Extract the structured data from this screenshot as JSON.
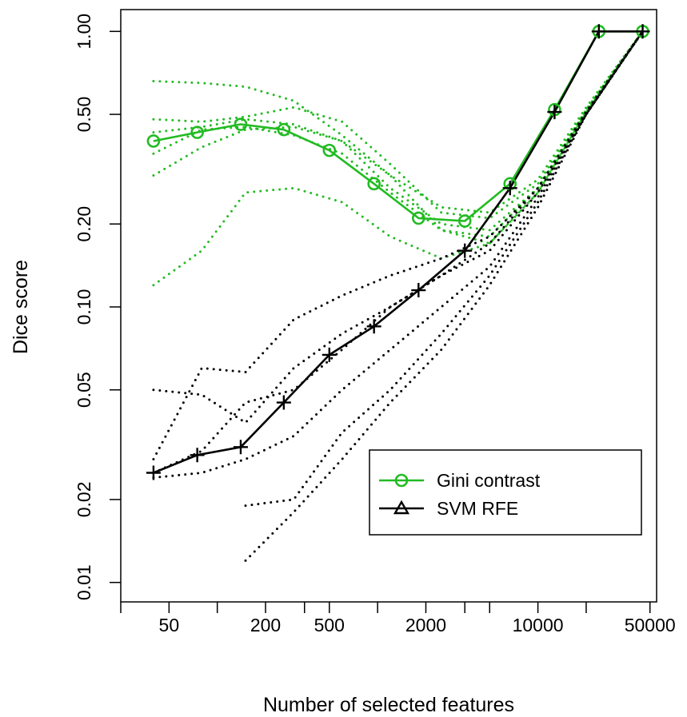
{
  "chart_data": {
    "type": "line",
    "title": "",
    "xlabel": "Number of selected features",
    "ylabel": "Dice score",
    "x_scale": "log",
    "y_scale": "log",
    "xlim": [
      25,
      55000
    ],
    "ylim": [
      0.0085,
      1.2
    ],
    "x_ticks": [
      25,
      50,
      100,
      200,
      350,
      500,
      1000,
      2000,
      3500,
      5000,
      10000,
      20000,
      50000
    ],
    "x_tick_labels": [
      {
        "value": 50,
        "label": "50"
      },
      {
        "value": 200,
        "label": "200"
      },
      {
        "value": 500,
        "label": "500"
      },
      {
        "value": 2000,
        "label": "2000"
      },
      {
        "value": 10000,
        "label": "10000"
      },
      {
        "value": 50000,
        "label": "50000"
      }
    ],
    "y_ticks": [
      {
        "value": 0.01,
        "label": "0.01"
      },
      {
        "value": 0.02,
        "label": "0.02"
      },
      {
        "value": 0.05,
        "label": "0.05"
      },
      {
        "value": 0.1,
        "label": "0.10"
      },
      {
        "value": 0.2,
        "label": "0.20"
      },
      {
        "value": 0.5,
        "label": "0.50"
      },
      {
        "value": 1.0,
        "label": "1.00"
      }
    ],
    "grid": false,
    "legend_position": "bottom-right",
    "series": [
      {
        "name": "Gini contrast",
        "color": "#22bb22",
        "marker": "circle",
        "x": [
          40,
          75,
          140,
          260,
          500,
          950,
          1800,
          3500,
          6700,
          12700,
          24000,
          45000
        ],
        "y": [
          0.4,
          0.43,
          0.46,
          0.44,
          0.37,
          0.28,
          0.21,
          0.205,
          0.28,
          0.52,
          1.0,
          1.0
        ]
      },
      {
        "name": "SVM RFE",
        "color": "#000000",
        "marker": "plus",
        "legend_marker": "triangle",
        "x": [
          40,
          75,
          140,
          260,
          500,
          950,
          1800,
          3500,
          6700,
          12700,
          24000,
          45000
        ],
        "y": [
          0.025,
          0.029,
          0.031,
          0.045,
          0.067,
          0.085,
          0.115,
          0.16,
          0.27,
          0.51,
          1.0,
          1.0
        ]
      }
    ],
    "replicates": [
      {
        "color": "#22bb22",
        "x": [
          40,
          80,
          150,
          300,
          600,
          1200,
          2500,
          5000,
          10000,
          20000,
          45000
        ],
        "y": [
          0.66,
          0.65,
          0.63,
          0.56,
          0.42,
          0.3,
          0.23,
          0.22,
          0.29,
          0.53,
          1.0
        ]
      },
      {
        "color": "#22bb22",
        "x": [
          40,
          80,
          150,
          300,
          600,
          1200,
          2500,
          5000,
          10000,
          20000,
          45000
        ],
        "y": [
          0.48,
          0.47,
          0.49,
          0.53,
          0.47,
          0.33,
          0.22,
          0.21,
          0.28,
          0.52,
          1.0
        ]
      },
      {
        "color": "#22bb22",
        "x": [
          40,
          80,
          150,
          300,
          600,
          1200,
          2500,
          5000,
          10000,
          20000,
          45000
        ],
        "y": [
          0.43,
          0.45,
          0.48,
          0.46,
          0.4,
          0.27,
          0.2,
          0.19,
          0.27,
          0.52,
          1.0
        ]
      },
      {
        "color": "#22bb22",
        "x": [
          40,
          80,
          150,
          300,
          600,
          1200,
          2500,
          5000,
          10000,
          20000,
          45000
        ],
        "y": [
          0.36,
          0.44,
          0.45,
          0.42,
          0.36,
          0.26,
          0.19,
          0.18,
          0.27,
          0.51,
          1.0
        ]
      },
      {
        "color": "#22bb22",
        "x": [
          40,
          80,
          150,
          300,
          600,
          1200,
          2500,
          5000,
          10000,
          20000,
          45000
        ],
        "y": [
          0.3,
          0.38,
          0.44,
          0.45,
          0.4,
          0.3,
          0.19,
          0.17,
          0.26,
          0.51,
          1.0
        ]
      },
      {
        "color": "#22bb22",
        "x": [
          40,
          80,
          150,
          300,
          600,
          1200,
          2500,
          5000,
          10000,
          20000,
          45000
        ],
        "y": [
          0.12,
          0.16,
          0.26,
          0.27,
          0.24,
          0.18,
          0.15,
          0.17,
          0.26,
          0.51,
          1.0
        ]
      },
      {
        "color": "#000000",
        "x": [
          40,
          80,
          150,
          300,
          600,
          1200,
          2500,
          5000,
          10000,
          20000,
          45000
        ],
        "y": [
          0.05,
          0.048,
          0.038,
          0.06,
          0.08,
          0.1,
          0.13,
          0.16,
          0.26,
          0.5,
          1.0
        ]
      },
      {
        "color": "#000000",
        "x": [
          40,
          80,
          150,
          300,
          600,
          1200,
          2500,
          5000,
          10000,
          20000,
          45000
        ],
        "y": [
          0.028,
          0.06,
          0.058,
          0.09,
          0.11,
          0.13,
          0.15,
          0.18,
          0.27,
          0.51,
          1.0
        ]
      },
      {
        "color": "#000000",
        "x": [
          40,
          80,
          150,
          300,
          600,
          1200,
          2500,
          5000,
          10000,
          20000,
          45000
        ],
        "y": [
          0.025,
          0.03,
          0.045,
          0.05,
          0.07,
          0.1,
          0.13,
          0.17,
          0.27,
          0.51,
          1.0
        ]
      },
      {
        "color": "#000000",
        "x": [
          40,
          80,
          150,
          300,
          600,
          1200,
          2500,
          5000,
          10000,
          20000,
          45000
        ],
        "y": [
          0.024,
          0.025,
          0.028,
          0.034,
          0.05,
          0.07,
          0.1,
          0.14,
          0.25,
          0.5,
          1.0
        ]
      },
      {
        "color": "#000000",
        "x": [
          150,
          300,
          600,
          1200,
          2500,
          5000,
          10000,
          20000,
          45000
        ],
        "y": [
          0.019,
          0.02,
          0.035,
          0.05,
          0.08,
          0.13,
          0.24,
          0.5,
          1.0
        ]
      },
      {
        "color": "#000000",
        "x": [
          150,
          300,
          600,
          1200,
          2500,
          5000,
          10000,
          20000,
          45000
        ],
        "y": [
          0.012,
          0.018,
          0.028,
          0.045,
          0.07,
          0.12,
          0.23,
          0.5,
          1.0
        ]
      }
    ]
  }
}
